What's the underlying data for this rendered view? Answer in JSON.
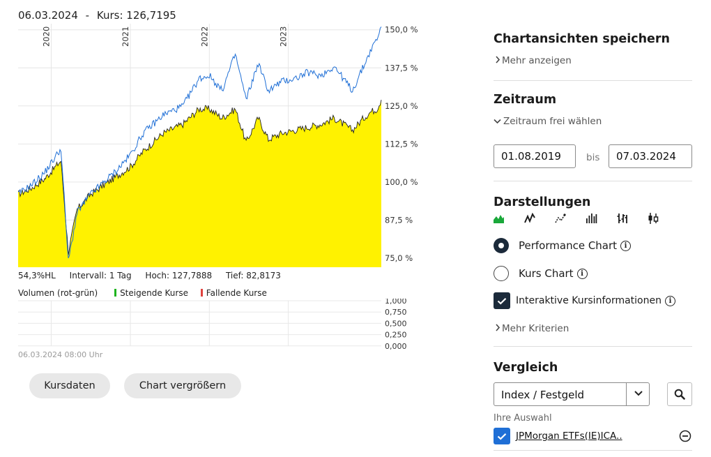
{
  "header": {
    "date": "06.03.2024",
    "sep": "-",
    "price": "Kurs: 126,7195"
  },
  "chart_data": {
    "type": "area",
    "x_labels": [
      "2020",
      "2021",
      "2022",
      "2023"
    ],
    "y_tick_labels": [
      "150,0 %",
      "137,5 %",
      "125,0 %",
      "112,5 %",
      "100,0 %",
      "87,5 %",
      "75,0 %"
    ],
    "ylim": [
      72,
      152
    ],
    "x_range": [
      "2019-08-01",
      "2024-03-06"
    ],
    "series": [
      {
        "color": "#1f6fd6",
        "x": [
          "2019-08-01",
          "2019-10-01",
          "2019-12-01",
          "2020-02-15",
          "2020-03-20",
          "2020-04-30",
          "2020-07-01",
          "2020-09-01",
          "2020-11-01",
          "2021-01-01",
          "2021-03-01",
          "2021-06-01",
          "2021-09-01",
          "2021-11-15",
          "2022-01-01",
          "2022-03-01",
          "2022-05-01",
          "2022-06-20",
          "2022-08-15",
          "2022-10-01",
          "2022-12-01",
          "2023-02-01",
          "2023-04-01",
          "2023-06-01",
          "2023-08-01",
          "2023-10-25",
          "2023-12-15",
          "2024-01-15",
          "2024-02-15",
          "2024-03-06"
        ],
        "y": [
          96,
          99,
          103,
          111,
          74,
          90,
          96,
          100,
          104,
          109,
          116,
          122,
          125,
          134,
          135,
          130,
          142,
          127,
          139,
          130,
          133,
          134,
          136,
          135,
          138,
          130,
          138,
          143,
          147,
          151
        ]
      },
      {
        "color": "#222222",
        "fill": "#fff200",
        "x": [
          "2019-08-01",
          "2019-10-01",
          "2019-12-01",
          "2020-02-15",
          "2020-03-20",
          "2020-04-30",
          "2020-07-01",
          "2020-09-01",
          "2020-11-01",
          "2021-01-01",
          "2021-03-01",
          "2021-06-01",
          "2021-09-01",
          "2021-11-15",
          "2022-01-01",
          "2022-03-01",
          "2022-05-01",
          "2022-06-20",
          "2022-08-15",
          "2022-10-01",
          "2022-12-01",
          "2023-02-01",
          "2023-04-01",
          "2023-06-01",
          "2023-08-01",
          "2023-10-25",
          "2023-12-15",
          "2024-01-15",
          "2024-02-15",
          "2024-03-06"
        ],
        "y": [
          96,
          98,
          101,
          107,
          77,
          91,
          96,
          99,
          102,
          105,
          110,
          116,
          119,
          124,
          124,
          121,
          124,
          113,
          121,
          114,
          116,
          117,
          118,
          119,
          121,
          117,
          121,
          123,
          124,
          127
        ]
      }
    ],
    "volume": {
      "y_tick_labels": [
        "1,000",
        "0,750",
        "0,500",
        "0,250",
        "0,000"
      ]
    }
  },
  "stats": {
    "hl": "54,3%HL",
    "interval": "Intervall: 1 Tag",
    "high": "Hoch: 127,7888",
    "low": "Tief: 82,8173"
  },
  "volume_legend": {
    "title": "Volumen (rot-grün)",
    "rising": "Steigende Kurse",
    "falling": "Fallende Kurse",
    "rising_color": "#1eb41e",
    "falling_color": "#e0433f"
  },
  "timestamp": "06.03.2024 08:00 Uhr",
  "buttons": {
    "kursdaten": "Kursdaten",
    "vergroessern": "Chart vergrößern"
  },
  "panel": {
    "save_title": "Chartansichten speichern",
    "more_show": "Mehr anzeigen",
    "range_title": "Zeitraum",
    "range_choose": "Zeitraum frei wählen",
    "date_from": "01.08.2019",
    "date_bis": "bis",
    "date_to": "07.03.2024",
    "display_title": "Darstellungen",
    "chart_types": [
      "area-chart-icon",
      "line-chart-icon",
      "dot-line-chart-icon",
      "bar-chart-icon",
      "ohlc-chart-icon",
      "candlestick-chart-icon"
    ],
    "option_performance": "Performance Chart",
    "option_kurs": "Kurs Chart",
    "option_interactive": "Interaktive Kursinformationen",
    "more_criteria": "Mehr Kriterien",
    "compare_title": "Vergleich",
    "compare_select": "Index / Festgeld",
    "your_selection": "Ihre Auswahl",
    "selected_item": "JPMorgan ETFs(IE)ICA..",
    "accent": "#1b2a3a"
  }
}
